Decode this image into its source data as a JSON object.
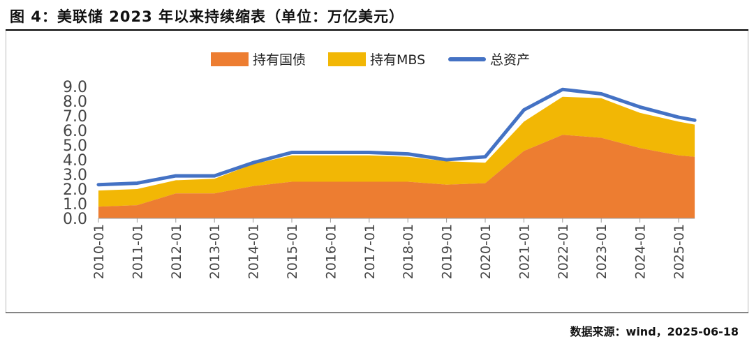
{
  "header": {
    "title": "图 4：美联储 2023 年以来持续缩表（单位：万亿美元）"
  },
  "footer": {
    "source": "数据来源：wind，2025-06-18"
  },
  "chart_data": {
    "type": "area",
    "x": [
      "2010-01",
      "2011-01",
      "2012-01",
      "2013-01",
      "2014-01",
      "2015-01",
      "2016-01",
      "2017-01",
      "2018-01",
      "2019-01",
      "2020-01",
      "2021-01",
      "2022-01",
      "2023-01",
      "2024-01",
      "2025-01",
      "2025-06"
    ],
    "x_tick_labels": [
      "2010-01",
      "2011-01",
      "2012-01",
      "2013-01",
      "2014-01",
      "2015-01",
      "2016-01",
      "2017-01",
      "2018-01",
      "2019-01",
      "2020-01",
      "2021-01",
      "2022-01",
      "2023-01",
      "2024-01",
      "2025-01"
    ],
    "y_ticks": [
      "0.0",
      "1.0",
      "2.0",
      "3.0",
      "4.0",
      "5.0",
      "6.0",
      "7.0",
      "8.0",
      "9.0"
    ],
    "ylim": [
      0,
      9
    ],
    "legend_position": "top-center",
    "series": [
      {
        "name": "持有国债",
        "kind": "area",
        "color": "#ED7D31",
        "values": [
          0.8,
          0.9,
          1.7,
          1.7,
          2.2,
          2.5,
          2.5,
          2.5,
          2.5,
          2.3,
          2.4,
          4.6,
          5.7,
          5.5,
          4.8,
          4.3,
          4.2
        ]
      },
      {
        "name": "持有MBS",
        "kind": "area",
        "color": "#F2B705",
        "values": [
          1.1,
          1.1,
          0.9,
          1.0,
          1.5,
          1.8,
          1.8,
          1.8,
          1.7,
          1.6,
          1.4,
          2.0,
          2.6,
          2.7,
          2.4,
          2.3,
          2.2
        ]
      },
      {
        "name": "总资产",
        "kind": "line",
        "color": "#4472C4",
        "values": [
          2.3,
          2.4,
          2.9,
          2.9,
          3.8,
          4.5,
          4.5,
          4.5,
          4.4,
          4.0,
          4.2,
          7.4,
          8.8,
          8.5,
          7.6,
          6.9,
          6.7
        ]
      }
    ]
  }
}
